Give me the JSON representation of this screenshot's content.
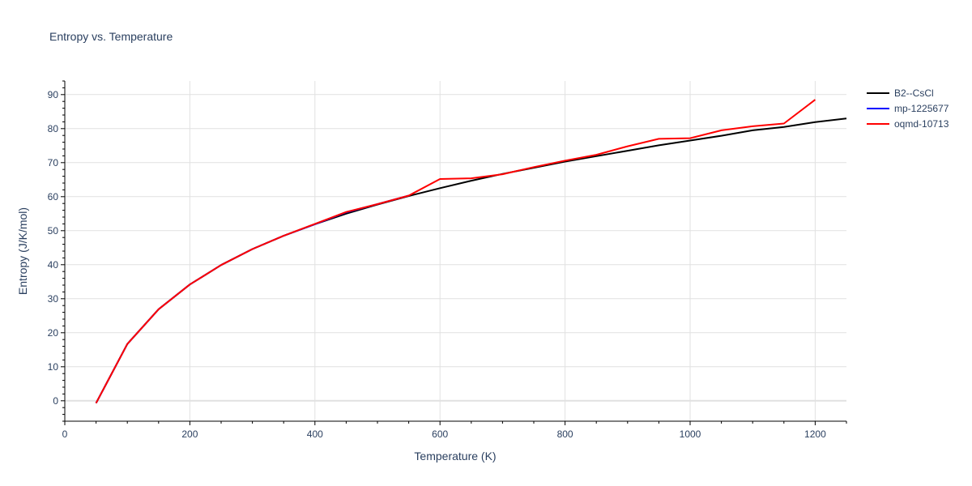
{
  "chart_data": {
    "type": "line",
    "title": "Entropy vs. Temperature",
    "xlabel": "Temperature (K)",
    "ylabel": "Entropy (J/K/mol)",
    "xlim": [
      0,
      1250
    ],
    "ylim": [
      -6,
      94
    ],
    "x_ticks": [
      0,
      200,
      400,
      600,
      800,
      1000,
      1200
    ],
    "y_ticks": [
      0,
      10,
      20,
      30,
      40,
      50,
      60,
      70,
      80,
      90
    ],
    "grid": true,
    "legend_position": "top-right",
    "series": [
      {
        "name": "B2--CsCl",
        "color": "#000000",
        "x": [
          50,
          100,
          150,
          200,
          250,
          300,
          350,
          400,
          450,
          500,
          550,
          600,
          650,
          700,
          750,
          800,
          850,
          900,
          950,
          1000,
          1050,
          1100,
          1150,
          1200,
          1250
        ],
        "y": [
          -0.7,
          16.7,
          26.9,
          34.2,
          39.9,
          44.6,
          48.5,
          51.9,
          55.0,
          57.7,
          60.2,
          62.5,
          64.7,
          66.7,
          68.5,
          70.3,
          71.9,
          73.5,
          75.1,
          76.5,
          77.9,
          79.5,
          80.5,
          81.9,
          83.0
        ]
      },
      {
        "name": "mp-1225677",
        "color": "#0000ff",
        "x": [
          50,
          100,
          150,
          200,
          250,
          300,
          350,
          400,
          450,
          500,
          550
        ],
        "y": [
          -0.7,
          16.7,
          26.9,
          34.2,
          39.9,
          44.6,
          48.5,
          51.9,
          55.4,
          57.8,
          60.3
        ]
      },
      {
        "name": "oqmd-10713",
        "color": "#ff0000",
        "x": [
          50,
          100,
          150,
          200,
          250,
          300,
          350,
          400,
          450,
          500,
          550,
          600,
          650,
          700,
          750,
          800,
          850,
          900,
          950,
          1000,
          1050,
          1100,
          1150,
          1200
        ],
        "y": [
          -0.7,
          16.7,
          26.9,
          34.2,
          39.9,
          44.6,
          48.5,
          52.0,
          55.5,
          57.8,
          60.3,
          65.2,
          65.4,
          66.6,
          68.7,
          70.6,
          72.3,
          74.8,
          77.0,
          77.2,
          79.5,
          80.7,
          81.5,
          88.5
        ]
      }
    ]
  }
}
